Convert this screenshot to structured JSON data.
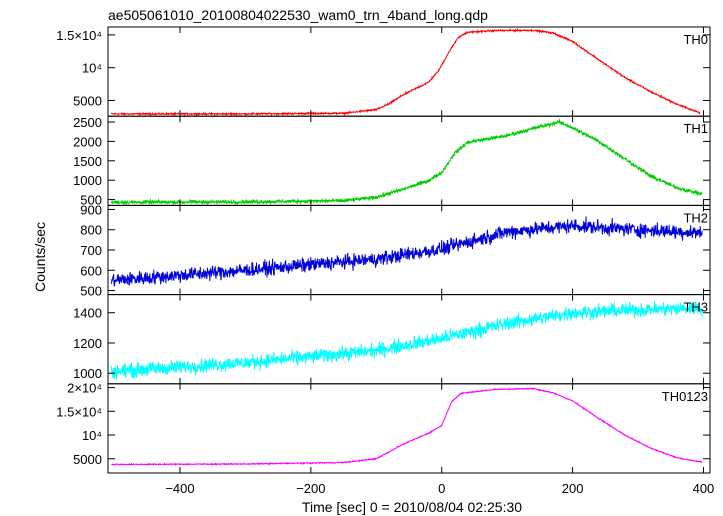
{
  "chart_data": {
    "type": "line",
    "title": "ae505061010_20100804022530_wam0_trn_4band_long.qdp",
    "xlabel": "Time [sec] 0 = 2010/08/04 02:25:30",
    "ylabel": "Counts/sec",
    "xlim": [
      -510,
      410
    ],
    "x_ticks": [
      -400,
      -200,
      0,
      200,
      400
    ],
    "x_tick_labels": [
      "−400",
      "−200",
      "0",
      "200",
      "400"
    ],
    "panels": [
      {
        "name": "TH0",
        "color": "#ff0000",
        "ylim": [
          2600,
          16200
        ],
        "ticks": [
          5000,
          10000,
          15000
        ],
        "tick_labels": [
          "5000",
          "10⁴",
          "1.5×10⁴"
        ],
        "noise": 100,
        "points": [
          [
            -505,
            2950
          ],
          [
            -300,
            2950
          ],
          [
            -150,
            3050
          ],
          [
            -100,
            3600
          ],
          [
            -80,
            4500
          ],
          [
            -60,
            5800
          ],
          [
            -40,
            6800
          ],
          [
            -20,
            7800
          ],
          [
            -5,
            9500
          ],
          [
            10,
            12200
          ],
          [
            25,
            14600
          ],
          [
            40,
            15400
          ],
          [
            80,
            15650
          ],
          [
            140,
            15700
          ],
          [
            170,
            15300
          ],
          [
            200,
            14000
          ],
          [
            240,
            11200
          ],
          [
            280,
            8500
          ],
          [
            320,
            6300
          ],
          [
            360,
            4400
          ],
          [
            395,
            3100
          ]
        ]
      },
      {
        "name": "TH1",
        "color": "#00cc00",
        "ylim": [
          350,
          2650
        ],
        "ticks": [
          500,
          1000,
          1500,
          2000,
          2500
        ],
        "tick_labels": [
          "500",
          "1000",
          "1500",
          "2000",
          "2500"
        ],
        "noise": 40,
        "points": [
          [
            -505,
            430
          ],
          [
            -300,
            440
          ],
          [
            -150,
            470
          ],
          [
            -100,
            560
          ],
          [
            -60,
            760
          ],
          [
            -20,
            990
          ],
          [
            0,
            1200
          ],
          [
            20,
            1700
          ],
          [
            40,
            1980
          ],
          [
            100,
            2150
          ],
          [
            150,
            2380
          ],
          [
            180,
            2500
          ],
          [
            200,
            2350
          ],
          [
            240,
            2000
          ],
          [
            280,
            1550
          ],
          [
            320,
            1100
          ],
          [
            360,
            800
          ],
          [
            398,
            640
          ]
        ]
      },
      {
        "name": "TH2",
        "color": "#0000dd",
        "ylim": [
          480,
          920
        ],
        "ticks": [
          500,
          600,
          700,
          800,
          900
        ],
        "tick_labels": [
          "500",
          "600",
          "700",
          "800",
          "900"
        ],
        "noise": 30,
        "points": [
          [
            -505,
            550
          ],
          [
            -300,
            600
          ],
          [
            -100,
            655
          ],
          [
            0,
            705
          ],
          [
            100,
            790
          ],
          [
            200,
            820
          ],
          [
            300,
            800
          ],
          [
            398,
            785
          ]
        ]
      },
      {
        "name": "TH3",
        "color": "#00ffff",
        "ylim": [
          930,
          1520
        ],
        "ticks": [
          1000,
          1200,
          1400
        ],
        "tick_labels": [
          "1000",
          "1200",
          "1400"
        ],
        "noise": 40,
        "points": [
          [
            -505,
            1010
          ],
          [
            -300,
            1070
          ],
          [
            -100,
            1150
          ],
          [
            0,
            1230
          ],
          [
            100,
            1330
          ],
          [
            200,
            1400
          ],
          [
            300,
            1420
          ],
          [
            398,
            1430
          ]
        ]
      },
      {
        "name": "TH0123",
        "color": "#ff00ff",
        "ylim": [
          2000,
          20800
        ],
        "ticks": [
          5000,
          10000,
          15000,
          20000
        ],
        "tick_labels": [
          "5000",
          "10⁴",
          "1.5×10⁴",
          "2×10⁴"
        ],
        "noise": 90,
        "points": [
          [
            -505,
            3800
          ],
          [
            -300,
            3900
          ],
          [
            -150,
            4200
          ],
          [
            -100,
            5000
          ],
          [
            -60,
            8000
          ],
          [
            -40,
            9200
          ],
          [
            -20,
            10400
          ],
          [
            0,
            12000
          ],
          [
            15,
            17000
          ],
          [
            30,
            18800
          ],
          [
            80,
            19600
          ],
          [
            140,
            19800
          ],
          [
            170,
            18900
          ],
          [
            200,
            17200
          ],
          [
            240,
            13500
          ],
          [
            280,
            10000
          ],
          [
            320,
            7200
          ],
          [
            360,
            5200
          ],
          [
            398,
            4300
          ]
        ]
      }
    ]
  }
}
